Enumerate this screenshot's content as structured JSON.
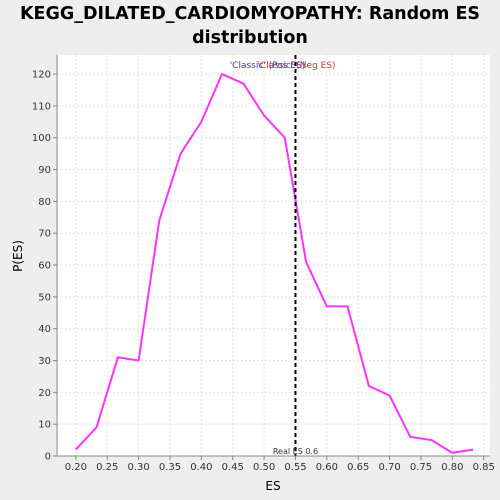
{
  "title_lines": [
    "KEGG_DILATED_CARDIOMYOPATHY: Random ES",
    "distribution"
  ],
  "chart_data": {
    "type": "line",
    "title": "KEGG_DILATED_CARDIOMYOPATHY: Random ES distribution",
    "xlabel": "ES",
    "ylabel": "P(ES)",
    "xlim": [
      0.17,
      0.86
    ],
    "ylim": [
      0,
      126
    ],
    "xticks": [
      0.2,
      0.25,
      0.3,
      0.35,
      0.4,
      0.45,
      0.5,
      0.55,
      0.6,
      0.65,
      0.7,
      0.75,
      0.8,
      0.85
    ],
    "xtick_labels": [
      "0.20",
      "0.25",
      "0.30",
      "0.35",
      "0.40",
      "0.45",
      "0.50",
      "0.55",
      "0.60",
      "0.65",
      "0.70",
      "0.75",
      "0.80",
      "0.85"
    ],
    "yticks": [
      0,
      10,
      20,
      30,
      40,
      50,
      60,
      70,
      80,
      90,
      100,
      110,
      120
    ],
    "grid": true,
    "series": [
      {
        "color": "#ff33ff",
        "x": [
          0.2,
          0.233,
          0.267,
          0.3,
          0.333,
          0.367,
          0.4,
          0.433,
          0.467,
          0.5,
          0.533,
          0.567,
          0.6,
          0.633,
          0.667,
          0.7,
          0.733,
          0.767,
          0.8,
          0.833
        ],
        "y": [
          2,
          9,
          31,
          30,
          74,
          95,
          105,
          120,
          117,
          107,
          100,
          61,
          47,
          47,
          22,
          19,
          6,
          5,
          1,
          2
        ]
      }
    ],
    "marker": {
      "x": 0.55,
      "label": "Real ES 0.6",
      "color": "#000000",
      "style": "dashed"
    },
    "legend": {
      "placement": "top-center",
      "entries": [
        {
          "text": "'Classic' (Pos ES)",
          "color": "#3333cc"
        },
        {
          "text": "'Classic' (Neg ES)",
          "color": "#cc3333"
        }
      ]
    }
  },
  "colors": {
    "background": "#eeeeee",
    "plot_background": "#ffffff",
    "gridline": "#e3e3e3"
  }
}
